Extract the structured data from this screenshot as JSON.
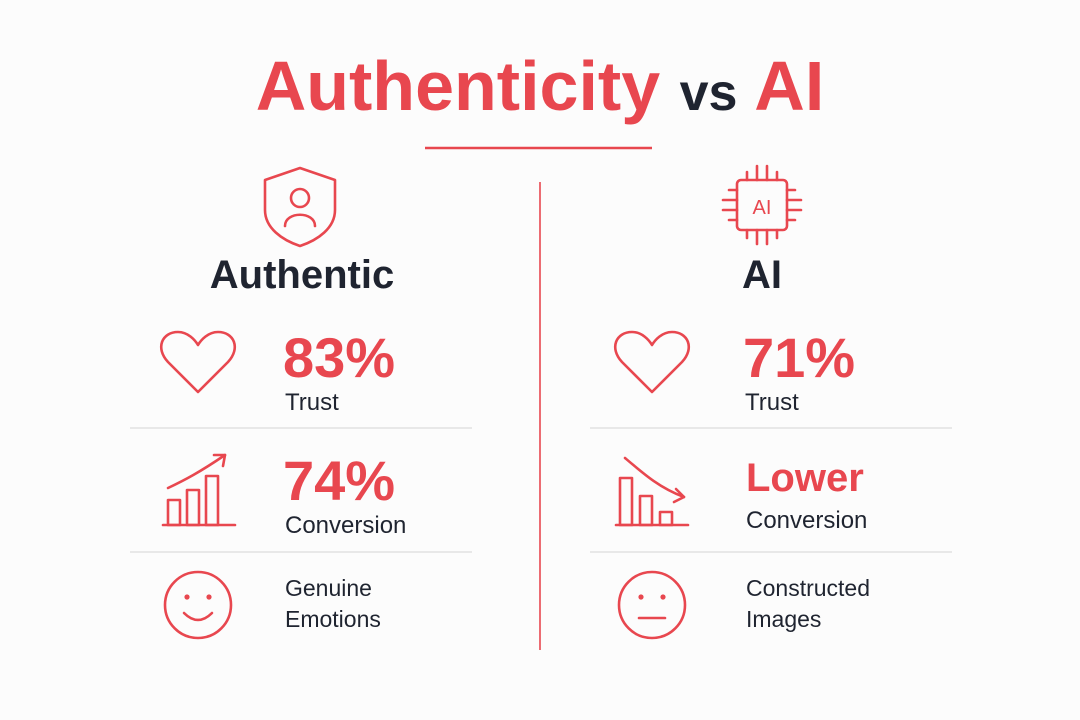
{
  "title": {
    "part1": "Authenticity",
    "part2": "vs",
    "part3": "AI"
  },
  "columns": [
    {
      "heading": "Authentic",
      "items": [
        {
          "value": "83%",
          "label": "Trust"
        },
        {
          "value": "74%",
          "label": "Conversion"
        },
        {
          "lines": [
            "Genuine",
            "Emotions"
          ]
        }
      ]
    },
    {
      "icon_text": "AI",
      "heading": "AI",
      "items": [
        {
          "value": "71%",
          "label": "Trust"
        },
        {
          "value": "Lower",
          "label": "Conversion"
        },
        {
          "lines": [
            "Constructed",
            "Images"
          ]
        }
      ]
    }
  ]
}
